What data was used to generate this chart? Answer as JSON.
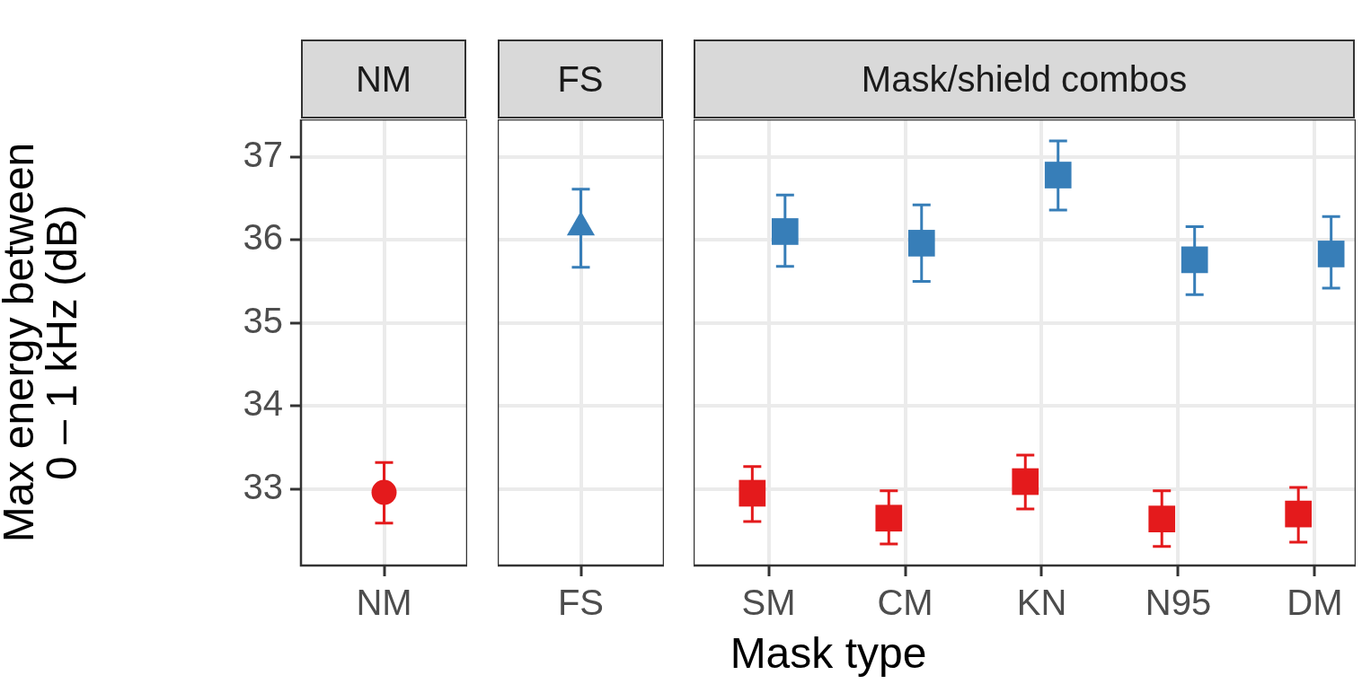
{
  "chart_data": [
    {
      "type": "scatter",
      "title": "NM",
      "categories": [
        "NM"
      ],
      "ylabel": "Max energy between\n0 – 1 kHz (dB)",
      "ylim": [
        32.08,
        37.45
      ],
      "yticks": [
        33,
        34,
        35,
        36,
        37
      ],
      "grid": true,
      "series": [
        {
          "color": "#e41a1c",
          "marker": "circle",
          "values": [
            32.96
          ],
          "errors": [
            [
              32.59,
              33.32
            ]
          ]
        }
      ]
    },
    {
      "type": "scatter",
      "title": "FS",
      "categories": [
        "FS"
      ],
      "ylim": [
        32.08,
        37.45
      ],
      "yticks": [
        33,
        34,
        35,
        36,
        37
      ],
      "grid": true,
      "tick_labels": "x",
      "series": [
        {
          "color": "#377eb8",
          "marker": "triangle",
          "values": [
            36.15
          ],
          "errors": [
            [
              35.67,
              36.61
            ]
          ]
        }
      ]
    },
    {
      "type": "scatter",
      "title": "Mask/shield combos",
      "categories": [
        "SM",
        "CM",
        "KN",
        "N95",
        "DM"
      ],
      "xlabel": "Mask type",
      "ylim": [
        32.08,
        37.45
      ],
      "yticks": [
        33,
        34,
        35,
        36,
        37
      ],
      "grid": true,
      "tick_labels": "x",
      "series": [
        {
          "color": "#e41a1c",
          "marker": "square",
          "values": [
            32.95,
            32.65,
            33.09,
            32.64,
            32.7
          ],
          "errors": [
            [
              32.61,
              33.27
            ],
            [
              32.34,
              32.98
            ],
            [
              32.76,
              33.41
            ],
            [
              32.31,
              32.98
            ],
            [
              32.36,
              33.02
            ]
          ]
        },
        {
          "color": "#377eb8",
          "marker": "square",
          "values": [
            36.1,
            35.96,
            36.78,
            35.76,
            35.83
          ],
          "errors": [
            [
              35.68,
              36.54
            ],
            [
              35.5,
              36.42
            ],
            [
              36.36,
              37.19
            ],
            [
              35.34,
              36.16
            ],
            [
              35.42,
              36.28
            ]
          ]
        }
      ]
    }
  ]
}
